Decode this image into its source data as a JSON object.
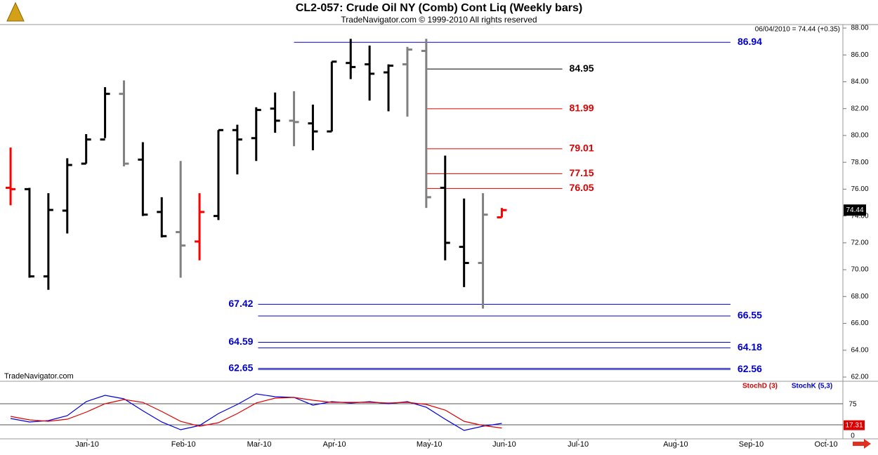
{
  "chart_data": [
    {
      "type": "ohlc",
      "title": "CL2-057:  Crude Oil NY (Comb) Cont Liq  (Weekly bars)",
      "subtitle": "TradeNavigator.com © 1999-2010 All rights reserved",
      "watermark": "TradeNavigator.com",
      "info": "06/04/2010 = 74.44 (+0.35)",
      "x": [
        0,
        1,
        2,
        3,
        4,
        5,
        6,
        7,
        8,
        9,
        10,
        11,
        12,
        13,
        14,
        15,
        16,
        17,
        18,
        19,
        20,
        21,
        22,
        23,
        24,
        25,
        26
      ],
      "open": [
        76.1,
        76.0,
        69.5,
        74.4,
        77.9,
        79.7,
        83.1,
        78.2,
        74.3,
        72.8,
        72.1,
        74.0,
        80.4,
        79.8,
        82.0,
        81.1,
        80.9,
        80.3,
        85.4,
        85.3,
        84.7,
        85.3,
        86.3,
        76.1,
        71.7,
        70.5,
        73.9
      ],
      "high": [
        79.1,
        76.1,
        75.7,
        78.3,
        80.1,
        83.6,
        84.1,
        79.5,
        75.4,
        78.1,
        75.7,
        80.4,
        80.8,
        82.1,
        83.2,
        83.3,
        82.3,
        85.5,
        87.2,
        86.7,
        85.3,
        86.6,
        87.2,
        78.5,
        75.3,
        75.7,
        74.6
      ],
      "low": [
        74.8,
        69.4,
        68.5,
        72.7,
        77.9,
        79.8,
        77.7,
        74.0,
        72.4,
        69.4,
        70.7,
        73.7,
        77.1,
        78.1,
        80.2,
        79.2,
        78.9,
        80.3,
        84.2,
        82.6,
        81.8,
        81.4,
        74.6,
        70.7,
        68.7,
        67.1,
        73.9
      ],
      "close": [
        76.0,
        69.5,
        74.45,
        77.8,
        79.7,
        83.1,
        77.9,
        74.1,
        72.5,
        71.8,
        74.3,
        80.4,
        79.7,
        81.9,
        81.1,
        81.0,
        80.3,
        85.5,
        85.1,
        84.6,
        85.2,
        86.4,
        75.4,
        72.0,
        70.5,
        74.1,
        74.44
      ],
      "colors": [
        "#ff0000",
        "#000000",
        "#000000",
        "#000000",
        "#000000",
        "#000000",
        "#808080",
        "#000000",
        "#000000",
        "#808080",
        "#ff0000",
        "#000000",
        "#000000",
        "#000000",
        "#000000",
        "#808080",
        "#000000",
        "#000000",
        "#000000",
        "#000000",
        "#000000",
        "#808080",
        "#808080",
        "#000000",
        "#000000",
        "#808080",
        "#ff0000"
      ],
      "xlim": [
        -0.56,
        44.05
      ],
      "ylim": [
        62,
        88
      ],
      "yticks": [
        {
          "value": 62,
          "label": "62.00"
        },
        {
          "value": 64,
          "label": "64.00"
        },
        {
          "value": 66,
          "label": "66.00"
        },
        {
          "value": 68,
          "label": "68.00"
        },
        {
          "value": 70,
          "label": "70.00"
        },
        {
          "value": 72,
          "label": "72.00"
        },
        {
          "value": 74,
          "label": "74.00"
        },
        {
          "value": 76,
          "label": "76.00"
        },
        {
          "value": 78,
          "label": "78.00"
        },
        {
          "value": 80,
          "label": "80.00"
        },
        {
          "value": 82,
          "label": "82.00"
        },
        {
          "value": 84,
          "label": "84.00"
        },
        {
          "value": 86,
          "label": "86.00"
        },
        {
          "value": 88,
          "label": "88.00"
        }
      ],
      "levels": [
        {
          "value": 86.94,
          "color": "#0000cc",
          "from": 15,
          "to": 38.1,
          "label_side": "right"
        },
        {
          "value": 84.95,
          "color": "#000000",
          "from": 22,
          "to": 29.2,
          "label_side": "right"
        },
        {
          "value": 81.99,
          "color": "#dd0000",
          "from": 22,
          "to": 29.2,
          "label_side": "right"
        },
        {
          "value": 79.01,
          "color": "#dd0000",
          "from": 22,
          "to": 29.2,
          "label_side": "right"
        },
        {
          "value": 77.15,
          "color": "#dd0000",
          "from": 22,
          "to": 29.2,
          "label_side": "right"
        },
        {
          "value": 76.05,
          "color": "#dd0000",
          "from": 22,
          "to": 29.2,
          "label_side": "right"
        },
        {
          "value": 67.42,
          "color": "#0000cc",
          "from": 13.1,
          "to": 38.1,
          "label_side": "left"
        },
        {
          "value": 66.55,
          "color": "#0000cc",
          "from": 13.1,
          "to": 38.1,
          "label_side": "right"
        },
        {
          "value": 64.59,
          "color": "#0000cc",
          "from": 13.1,
          "to": 38.1,
          "label_side": "left"
        },
        {
          "value": 64.18,
          "color": "#0000cc",
          "from": 13.1,
          "to": 38.1,
          "label_side": "right"
        },
        {
          "value": 62.65,
          "color": "#0000cc",
          "from": 13.1,
          "to": 38.1,
          "label_side": "left"
        },
        {
          "value": 62.56,
          "color": "#0000cc",
          "from": 13.1,
          "to": 38.1,
          "label_side": "right"
        }
      ]
    },
    {
      "type": "line",
      "x": [
        0,
        1,
        2,
        3,
        4,
        5,
        6,
        7,
        8,
        9,
        10,
        11,
        12,
        13,
        14,
        15,
        16,
        17,
        18,
        19,
        20,
        21,
        22,
        23,
        24,
        25,
        26
      ],
      "series": [
        {
          "name": "StochD (3)",
          "color": "#dd0000",
          "values": [
            45,
            36.7,
            33.3,
            38.3,
            55,
            75,
            85,
            78.3,
            56.7,
            33.3,
            21.7,
            30,
            51.7,
            76.7,
            88.3,
            90,
            83.3,
            78.3,
            78.3,
            78.3,
            76.7,
            78.3,
            73.3,
            60,
            33.3,
            23.3,
            17.31
          ]
        },
        {
          "name": "StochK (5,3)",
          "color": "#0000dd",
          "values": [
            40,
            31.7,
            35,
            46.7,
            80,
            95,
            86.7,
            58.3,
            31.7,
            13.3,
            23.3,
            51.7,
            73.3,
            98.3,
            91.7,
            90,
            71.7,
            80,
            76.7,
            80,
            75,
            80,
            66.7,
            38.3,
            11.7,
            21.7,
            28.3
          ]
        }
      ],
      "xlim": [
        -0.56,
        44.05
      ],
      "xticks": [
        {
          "value": 4.05,
          "label": "Jan-10"
        },
        {
          "value": 9.15,
          "label": "Feb-10"
        },
        {
          "value": 13.16,
          "label": "Mar-10"
        },
        {
          "value": 17.14,
          "label": "Apr-10"
        },
        {
          "value": 22.16,
          "label": "May-10"
        },
        {
          "value": 26.13,
          "label": "Jun-10"
        },
        {
          "value": 30.04,
          "label": "Jul-10"
        },
        {
          "value": 35.2,
          "label": "Aug-10"
        },
        {
          "value": 39.2,
          "label": "Sep-10"
        },
        {
          "value": 43.16,
          "label": "Oct-10"
        }
      ],
      "ylim": [
        0,
        100
      ],
      "yticks": [
        0,
        75
      ],
      "guides": [
        75,
        25
      ]
    }
  ]
}
